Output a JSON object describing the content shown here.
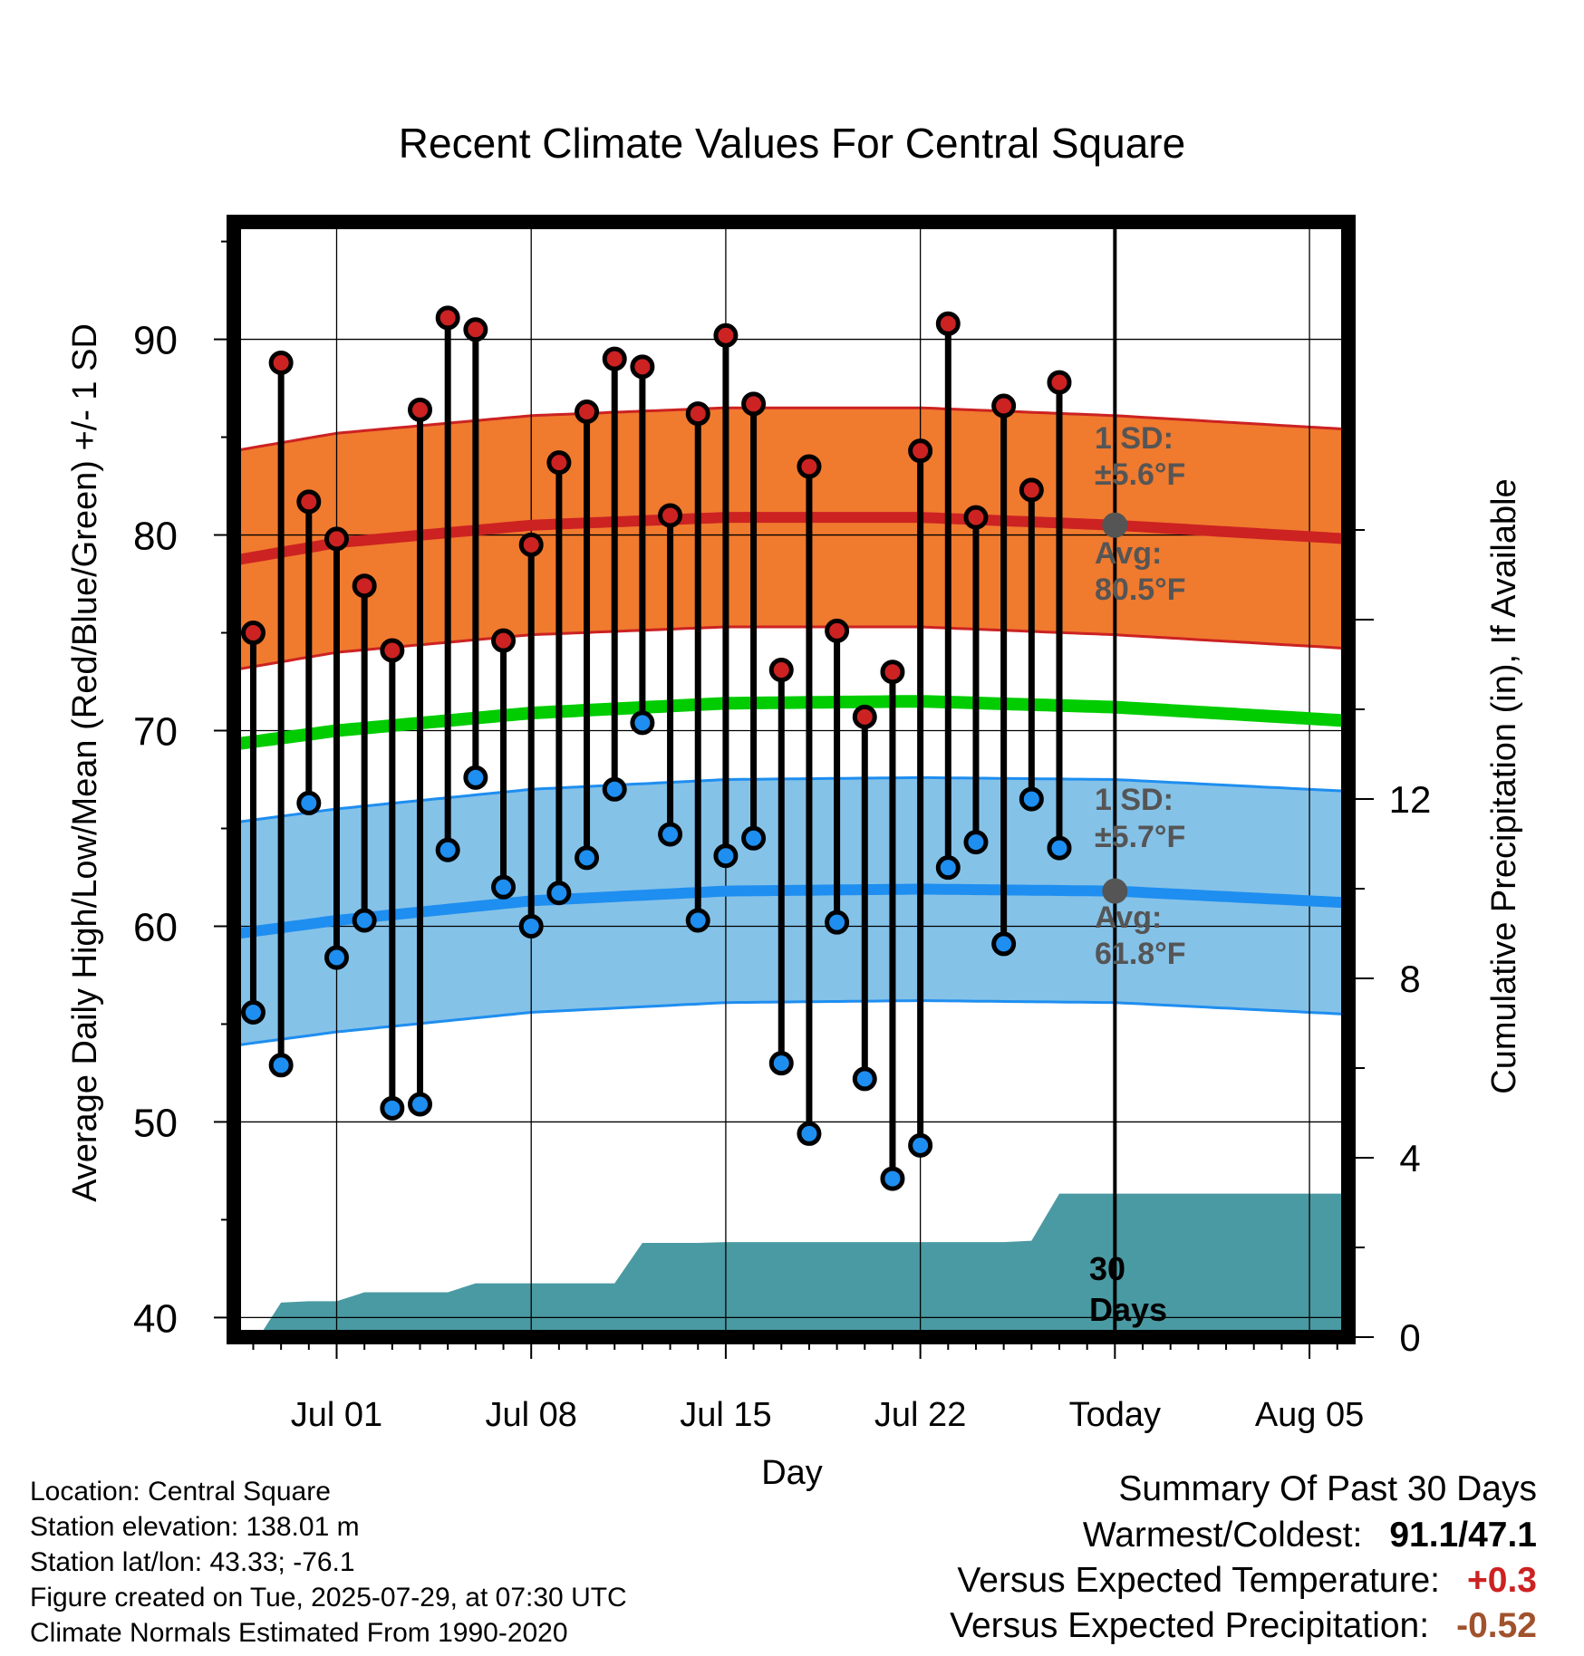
{
  "chart_data": {
    "type": "line",
    "title": "Recent Climate Values For Central Square",
    "xlabel": "Day",
    "ylabel": "Average Daily High/Low/Mean (Red/Blue/Green) +/- 1 SD",
    "y2label": "Cumulative Precipitation (in), If Available",
    "ylim": [
      39,
      96
    ],
    "y2lim": [
      0,
      20
    ],
    "yticks": [
      40,
      50,
      60,
      70,
      80,
      90
    ],
    "y2ticks": [
      0,
      4,
      8,
      12
    ],
    "xticks": [
      {
        "label": "Jul 01",
        "day": 1
      },
      {
        "label": "Jul 08",
        "day": 8
      },
      {
        "label": "Jul 15",
        "day": 15
      },
      {
        "label": "Jul 22",
        "day": 22
      },
      {
        "label": "Today",
        "day": 29
      },
      {
        "label": "Aug 05",
        "day": 36
      }
    ],
    "xlim_days": [
      -2.7,
      37.4
    ],
    "grid": true,
    "days": [
      -2,
      -1,
      0,
      1,
      2,
      3,
      4,
      5,
      6,
      7,
      8,
      9,
      10,
      11,
      12,
      13,
      14,
      15,
      16,
      17,
      18,
      19,
      20,
      21,
      22,
      23,
      24,
      25,
      26,
      27,
      28
    ],
    "daily_high": [
      75.0,
      88.8,
      81.7,
      79.8,
      77.4,
      74.1,
      86.4,
      91.1,
      90.5,
      74.6,
      79.5,
      83.7,
      86.3,
      89.0,
      88.6,
      81.0,
      86.2,
      90.2,
      86.7,
      73.1,
      83.5,
      75.1,
      70.7,
      73.0,
      84.3,
      90.8,
      80.9,
      86.6,
      82.3,
      87.8,
      null
    ],
    "daily_low": [
      55.6,
      52.9,
      66.3,
      58.4,
      60.3,
      50.7,
      50.9,
      63.9,
      67.6,
      62.0,
      60.0,
      61.7,
      63.5,
      67.0,
      70.4,
      64.7,
      60.3,
      63.6,
      64.5,
      53.0,
      49.4,
      60.2,
      52.2,
      47.1,
      48.8,
      63.0,
      64.3,
      59.1,
      66.5,
      64.0,
      null
    ],
    "normal_high_mean": [
      [
        -2.7,
        78.7
      ],
      [
        1,
        79.6
      ],
      [
        8,
        80.5
      ],
      [
        15,
        80.9
      ],
      [
        22,
        80.9
      ],
      [
        29,
        80.5
      ],
      [
        37.4,
        79.8
      ]
    ],
    "normal_low_mean": [
      [
        -2.7,
        59.6
      ],
      [
        1,
        60.3
      ],
      [
        8,
        61.3
      ],
      [
        15,
        61.8
      ],
      [
        22,
        61.9
      ],
      [
        29,
        61.8
      ],
      [
        37.4,
        61.2
      ]
    ],
    "normal_mean": [
      [
        -2.7,
        69.3
      ],
      [
        1,
        70.0
      ],
      [
        8,
        70.9
      ],
      [
        15,
        71.4
      ],
      [
        22,
        71.5
      ],
      [
        29,
        71.2
      ],
      [
        37.4,
        70.5
      ]
    ],
    "high_sd": 5.6,
    "low_sd": 5.7,
    "precip_cumulative": [
      [
        -1.8,
        0.0
      ],
      [
        -1.0,
        0.77
      ],
      [
        0.0,
        0.8
      ],
      [
        1.0,
        0.8
      ],
      [
        2.0,
        1.0
      ],
      [
        3.0,
        1.0
      ],
      [
        4.0,
        1.0
      ],
      [
        5.0,
        1.0
      ],
      [
        6.0,
        1.2
      ],
      [
        7.0,
        1.2
      ],
      [
        8.0,
        1.2
      ],
      [
        9.0,
        1.2
      ],
      [
        10.0,
        1.2
      ],
      [
        11.0,
        1.2
      ],
      [
        12.0,
        2.1
      ],
      [
        13.0,
        2.1
      ],
      [
        14.0,
        2.1
      ],
      [
        15.0,
        2.12
      ],
      [
        16.0,
        2.12
      ],
      [
        17.0,
        2.12
      ],
      [
        18.0,
        2.12
      ],
      [
        19.0,
        2.12
      ],
      [
        20.0,
        2.12
      ],
      [
        21.0,
        2.12
      ],
      [
        22.0,
        2.12
      ],
      [
        23.0,
        2.12
      ],
      [
        24.0,
        2.12
      ],
      [
        25.0,
        2.12
      ],
      [
        26.0,
        2.15
      ],
      [
        27.0,
        3.2
      ],
      [
        28.0,
        3.2
      ],
      [
        29.0,
        3.2
      ],
      [
        37.4,
        3.2
      ]
    ],
    "today_marker": {
      "high_avg_label": "Avg:",
      "high_avg_value": "80.5°F",
      "high_sd_label": "1 SD:",
      "high_sd_value": "±5.6°F",
      "low_avg_label": "Avg:",
      "low_avg_value": "61.8°F",
      "low_sd_label": "1 SD:",
      "low_sd_value": "±5.7°F",
      "period_label_1": "30",
      "period_label_2": "Days"
    },
    "colors": {
      "high_band": "#f07a2e",
      "high_line": "#cc2222",
      "low_band": "#85c2e8",
      "low_line": "#1e8ef0",
      "mean_line": "#00cc00",
      "precip": "#4a9aa3",
      "high_dot": "#cc2222",
      "low_dot": "#1e8ef0",
      "annotation": "#555555"
    }
  },
  "footer": {
    "location": "Location: Central Square",
    "elevation": "Station elevation: 138.01 m",
    "latlon": "Station lat/lon: 43.33; -76.1",
    "created": "Figure created on Tue, 2025-07-29, at 07:30 UTC",
    "normals": "Climate Normals Estimated From 1990-2020"
  },
  "summary": {
    "title": "Summary Of Past 30 Days",
    "warmest_coldest_label": "Warmest/Coldest:",
    "warmest_coldest_value": "91.1/47.1",
    "temp_label": "Versus Expected Temperature:",
    "temp_value": "+0.3",
    "temp_color": "#cc2222",
    "precip_label": "Versus Expected Precipitation:",
    "precip_value": "-0.52",
    "precip_color": "#a0522d"
  }
}
